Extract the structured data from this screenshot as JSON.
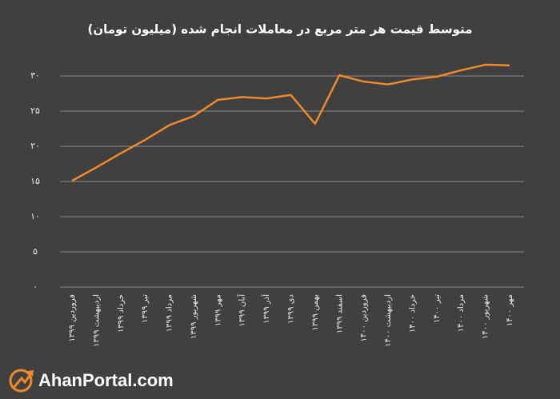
{
  "chart_data": {
    "type": "line",
    "title": "متوسط قیمت هر متر مربع در معاملات انجام شده (میلیون تومان)",
    "categories": [
      "فروردین ۱۳۹۹",
      "اردیبهشت ۱۳۹۹",
      "خرداد ۱۳۹۹",
      "تیر ۱۳۹۹",
      "مرداد ۱۳۹۹",
      "شهریور ۱۳۹۹",
      "مهر ۱۳۹۹",
      "آبان ۱۳۹۹",
      "آذر ۱۳۹۹",
      "دی ۱۳۹۹",
      "بهمن ۱۳۹۹",
      "اسفند ۱۳۹۹",
      "فروردین ۱۴۰۰",
      "اردیبهشت ۱۴۰۰",
      "خرداد ۱۴۰۰",
      "تیر ۱۴۰۰",
      "مرداد ۱۴۰۰",
      "شهریور ۱۴۰۰",
      "مهر ۱۴۰۰"
    ],
    "values": [
      15.1,
      17.0,
      19.0,
      20.9,
      23.0,
      24.3,
      26.6,
      27.0,
      26.8,
      27.3,
      23.2,
      30.1,
      29.2,
      28.8,
      29.5,
      29.9,
      30.8,
      31.6,
      31.5
    ],
    "color": "#f0892a",
    "ylim": [
      0,
      30
    ],
    "yticks": [
      {
        "value": 0,
        "label": "۰"
      },
      {
        "value": 5,
        "label": "۵"
      },
      {
        "value": 10,
        "label": "۱۰"
      },
      {
        "value": 15,
        "label": "۱۵"
      },
      {
        "value": 20,
        "label": "۲۰"
      },
      {
        "value": 25,
        "label": "۲۵"
      },
      {
        "value": 30,
        "label": "۳۰"
      }
    ],
    "grid": true
  },
  "logo": "AhanPortal.com"
}
